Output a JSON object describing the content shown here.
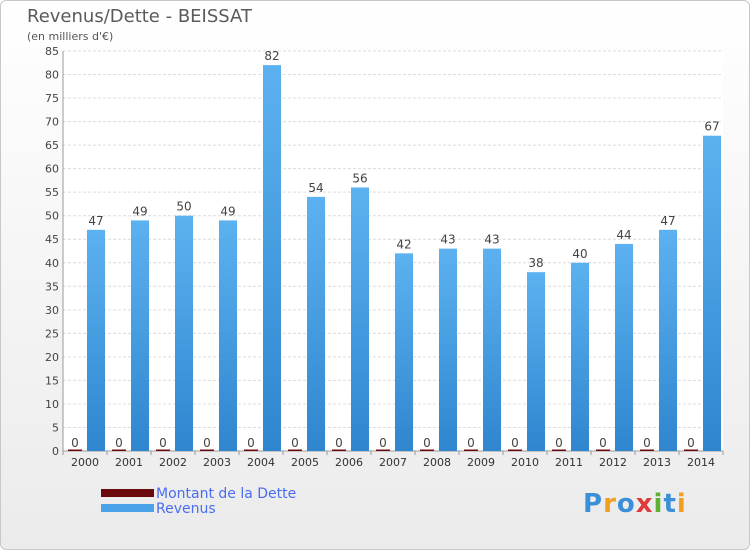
{
  "chart_data": {
    "type": "bar",
    "title": "Revenus/Dette - BEISSAT",
    "subtitle": "(en milliers d'€)",
    "categories": [
      "2000",
      "2001",
      "2002",
      "2003",
      "2004",
      "2005",
      "2006",
      "2007",
      "2008",
      "2009",
      "2010",
      "2011",
      "2012",
      "2013",
      "2014"
    ],
    "series": [
      {
        "name": "Montant de la Dette",
        "color": "#6b0a0a",
        "values": [
          0,
          0,
          0,
          0,
          0,
          0,
          0,
          0,
          0,
          0,
          0,
          0,
          0,
          0,
          0
        ]
      },
      {
        "name": "Revenus",
        "color": "#4aa3e8",
        "values": [
          47,
          49,
          50,
          49,
          82,
          54,
          56,
          42,
          43,
          43,
          38,
          40,
          44,
          47,
          67
        ]
      }
    ],
    "ylim": [
      0,
      85
    ],
    "yticks": [
      0,
      5,
      10,
      15,
      20,
      25,
      30,
      35,
      40,
      45,
      50,
      55,
      60,
      65,
      70,
      75,
      80,
      85
    ],
    "grid": true,
    "legend_position": "bottom-left"
  },
  "legend": {
    "debt_label": "Montant de la Dette",
    "revenue_label": "Revenus"
  },
  "logo": {
    "letters": [
      "P",
      "r",
      "o",
      "x",
      "i",
      "t",
      "i"
    ],
    "colors": [
      "#3a8fd8",
      "#f0a020",
      "#3a8fd8",
      "#e03a3a",
      "#60b030",
      "#3a8fd8",
      "#f0a020"
    ]
  }
}
